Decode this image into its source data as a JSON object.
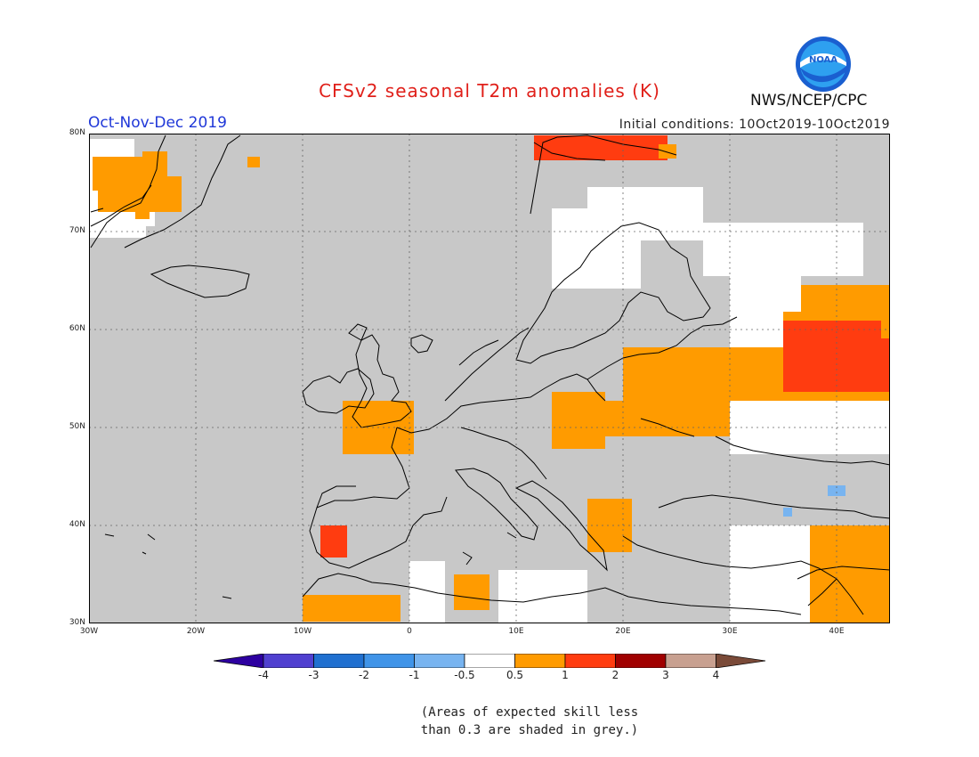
{
  "header": {
    "title": "CFSv2 seasonal T2m anomalies (K)",
    "season": "Oct-Nov-Dec 2019",
    "initial_conditions": "Initial conditions: 10Oct2019-10Oct2019",
    "agency": "NWS/NCEP/CPC",
    "logo_text": "NOAA"
  },
  "map": {
    "lon_range": [
      -30,
      45
    ],
    "lat_range": [
      30,
      80
    ],
    "lat_labels": [
      "80N",
      "70N",
      "60N",
      "50N",
      "40N",
      "30N"
    ],
    "lon_labels": [
      "30W",
      "20W",
      "10W",
      "0",
      "10E",
      "20E",
      "30E",
      "40E"
    ],
    "colors": {
      "grey_low_skill": "#c8c8c8",
      "neutral": "#ffffff",
      "warm_0_5_to_1": "#ff9b00",
      "warm_1_to_2": "#ff3c10",
      "cold_minus1_to_minus0_5": "#78b4f0"
    }
  },
  "colorbar": {
    "ticks": [
      "-4",
      "-3",
      "-2",
      "-1",
      "-0.5",
      "0.5",
      "1",
      "2",
      "3",
      "4"
    ],
    "colors": [
      "#2d00a0",
      "#5040d0",
      "#2070d0",
      "#4094e8",
      "#78b4f0",
      "#ffffff",
      "#ff9b00",
      "#ff3c10",
      "#a00000",
      "#c8a090",
      "#7a4a38"
    ]
  },
  "footnote": {
    "line1": "(Areas of expected skill less",
    "line2": "than 0.3 are shaded in grey.)"
  }
}
